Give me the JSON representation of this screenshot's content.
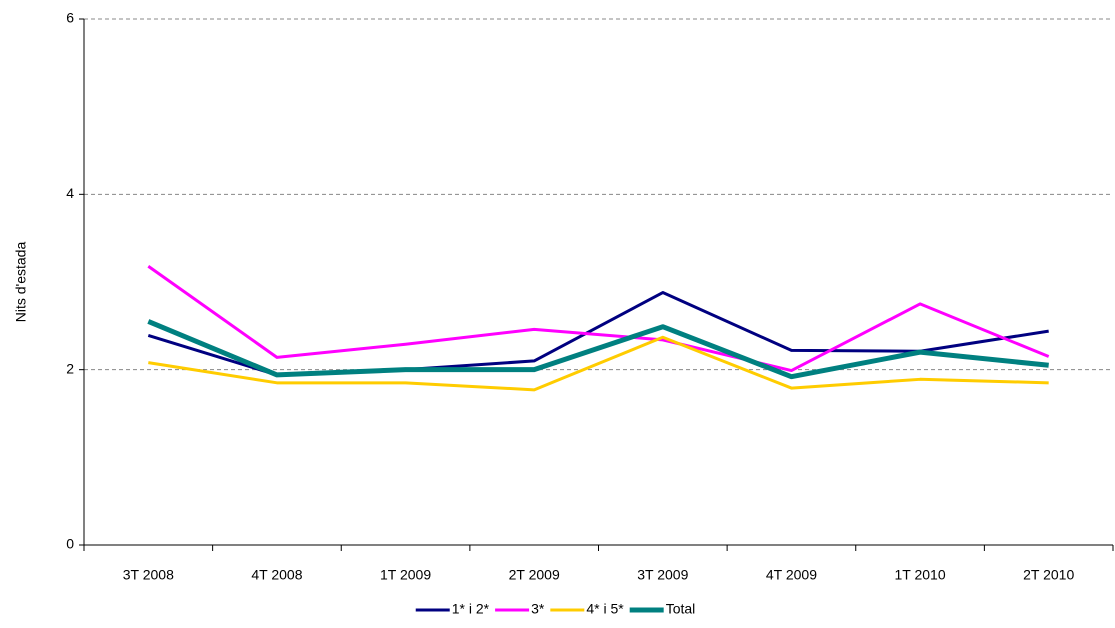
{
  "chart_data": {
    "type": "line",
    "y_label": "Nits d'estada",
    "categories": [
      "3T 2008",
      "4T 2008",
      "1T 2009",
      "2T 2009",
      "3T 2009",
      "4T 2009",
      "1T 2010",
      "2T 2010"
    ],
    "series": [
      {
        "name": "1* i 2*",
        "color": "#000080",
        "values": [
          2.39,
          1.94,
          2.0,
          2.1,
          2.88,
          2.22,
          2.21,
          2.44
        ]
      },
      {
        "name": "3*",
        "color": "#ff00ff",
        "values": [
          3.18,
          2.14,
          2.29,
          2.46,
          2.34,
          1.99,
          2.75,
          2.15
        ]
      },
      {
        "name": "4* i 5*",
        "color": "#ffcc00",
        "values": [
          2.08,
          1.85,
          1.85,
          1.77,
          2.37,
          1.79,
          1.89,
          1.85
        ]
      },
      {
        "name": "Total",
        "color": "#008080",
        "values": [
          2.55,
          1.94,
          2.0,
          2.0,
          2.49,
          1.92,
          2.2,
          2.05
        ]
      }
    ],
    "ylim": [
      0,
      6
    ],
    "yticks": [
      0,
      2,
      4,
      6
    ],
    "grid": true
  }
}
